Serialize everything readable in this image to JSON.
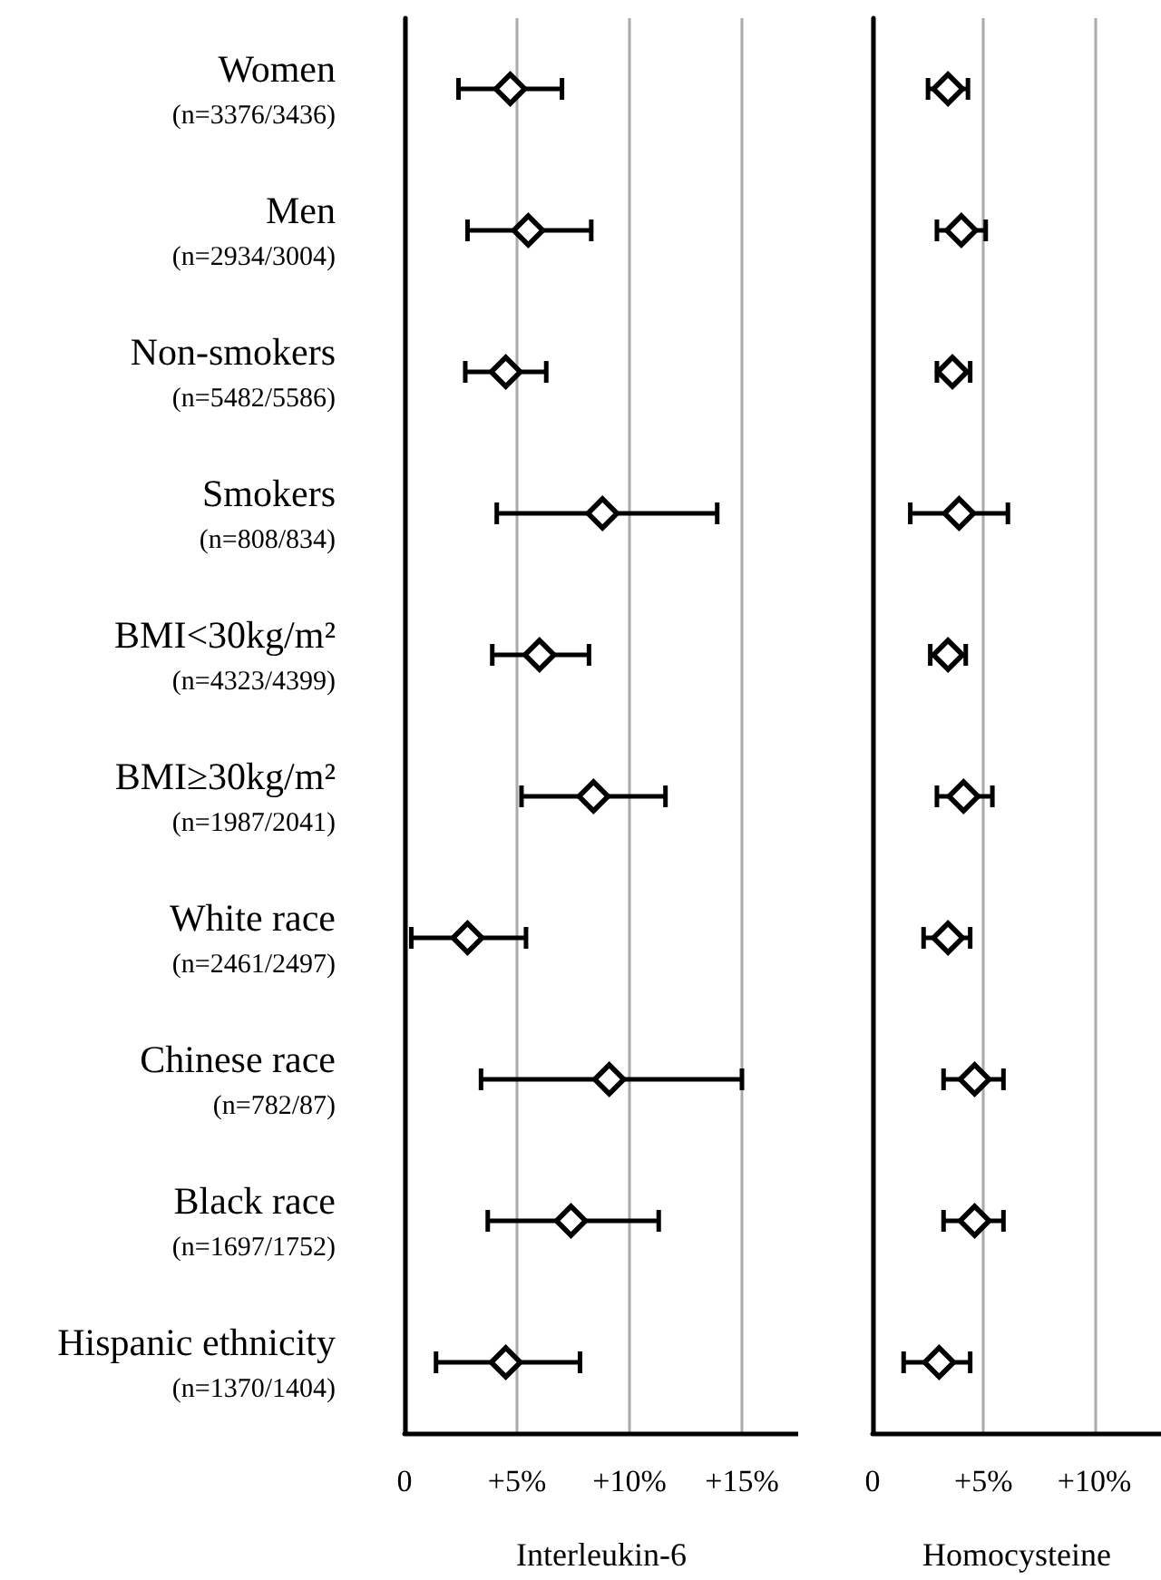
{
  "chart_data": [
    {
      "type": "scatter",
      "orientation": "horizontal",
      "xlabel": "Interleukin-6",
      "categories": [
        "Women\n(n=3376/3436)",
        "Men\n(n=2934/3004)",
        "Non-smokers\n(n=5482/5586)",
        "Smokers\n(n=808/834)",
        "BMI<30kg/m²\n(n=4323/4399)",
        "BMI≥30kg/m²\n(n=1987/2041)",
        "White race\n(n=2461/2497)",
        "Chinese race\n(n=782/87)",
        "Black race\n(n=1697/1752)",
        "Hispanic ethnicity\n(n=1370/1404)"
      ],
      "values": [
        4.7,
        5.5,
        4.5,
        8.8,
        6.0,
        8.4,
        2.8,
        9.1,
        7.4,
        4.5
      ],
      "errors": [
        [
          2.4,
          7.0
        ],
        [
          2.8,
          8.3
        ],
        [
          2.7,
          6.3
        ],
        [
          4.1,
          13.9
        ],
        [
          3.9,
          8.2
        ],
        [
          5.2,
          11.6
        ],
        [
          0.3,
          5.4
        ],
        [
          3.4,
          15.0
        ],
        [
          3.7,
          11.3
        ],
        [
          1.4,
          7.8
        ]
      ],
      "color": "#000000",
      "marker": "diamond",
      "xlim": [
        0,
        17.5
      ],
      "xticks": [
        0,
        {
          "value": 5,
          "label": "+5%"
        },
        {
          "value": 10,
          "label": "+10%"
        },
        {
          "value": 15,
          "label": "+15%"
        }
      ],
      "grid": "x"
    },
    {
      "type": "scatter",
      "orientation": "horizontal",
      "xlabel": "Homocysteine",
      "categories": [
        null,
        null,
        null,
        null,
        null,
        null,
        null,
        null,
        null,
        null
      ],
      "values": [
        3.4,
        4.0,
        3.6,
        3.9,
        3.4,
        4.1,
        3.4,
        4.6,
        4.6,
        3.0
      ],
      "errors": [
        [
          2.5,
          4.3
        ],
        [
          2.9,
          5.1
        ],
        [
          2.9,
          4.4
        ],
        [
          1.7,
          6.1
        ],
        [
          2.6,
          4.2
        ],
        [
          2.9,
          5.4
        ],
        [
          2.3,
          4.4
        ],
        [
          3.2,
          5.9
        ],
        [
          3.2,
          5.9
        ],
        [
          1.4,
          4.4
        ]
      ],
      "color": "#000000",
      "marker": "diamond",
      "xlim": [
        0,
        13
      ],
      "xticks": [
        0,
        {
          "value": 5,
          "label": "+5%"
        },
        {
          "value": 10,
          "label": "+10%"
        }
      ],
      "grid": "x"
    }
  ]
}
